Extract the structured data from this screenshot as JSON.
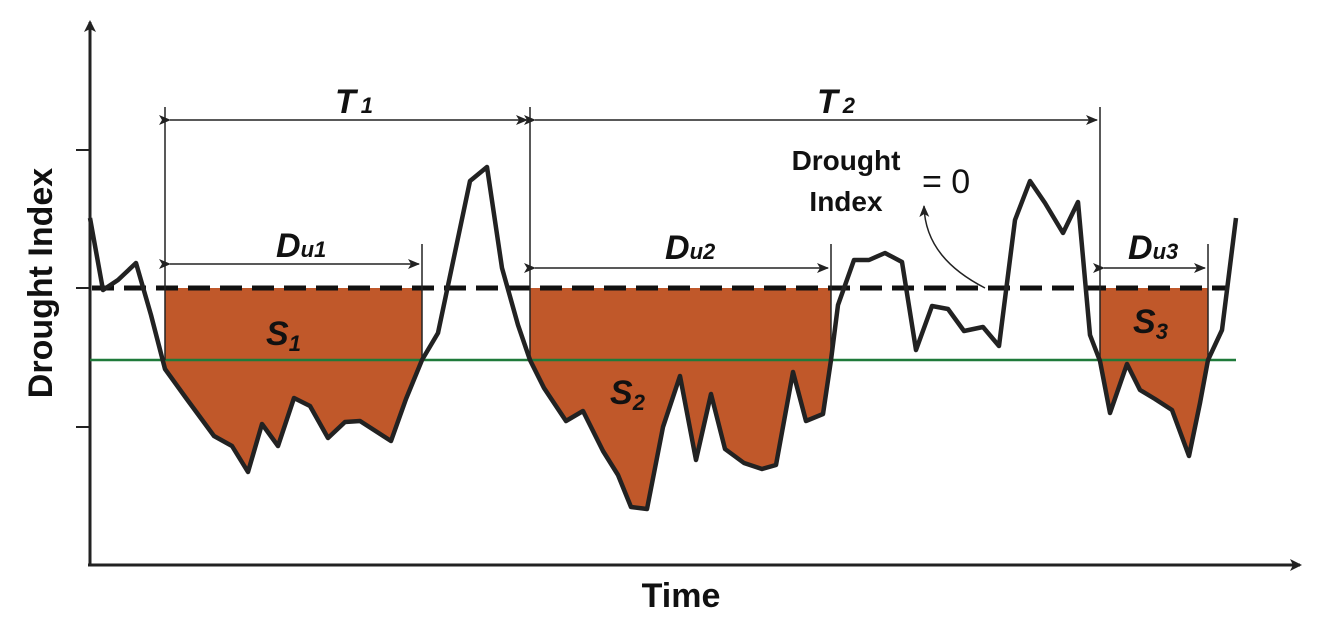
{
  "axes": {
    "y_label": "Drought Index",
    "x_label": "Time"
  },
  "periods": [
    {
      "name": "T",
      "sub": "1"
    },
    {
      "name": "T",
      "sub": "2"
    }
  ],
  "durations": [
    {
      "name": "D",
      "sub": "u1"
    },
    {
      "name": "D",
      "sub": "u2"
    },
    {
      "name": "D",
      "sub": "u3"
    }
  ],
  "severities": [
    {
      "name": "S",
      "sub": "1"
    },
    {
      "name": "S",
      "sub": "2"
    },
    {
      "name": "S",
      "sub": "3"
    }
  ],
  "threshold_annotation": {
    "line1": "Drought",
    "line2": "Index",
    "value": "= 0"
  },
  "colors": {
    "fill": "#C0582A",
    "series": "#222222",
    "threshold_line": "#1F7A3A",
    "axis": "#222222"
  }
}
